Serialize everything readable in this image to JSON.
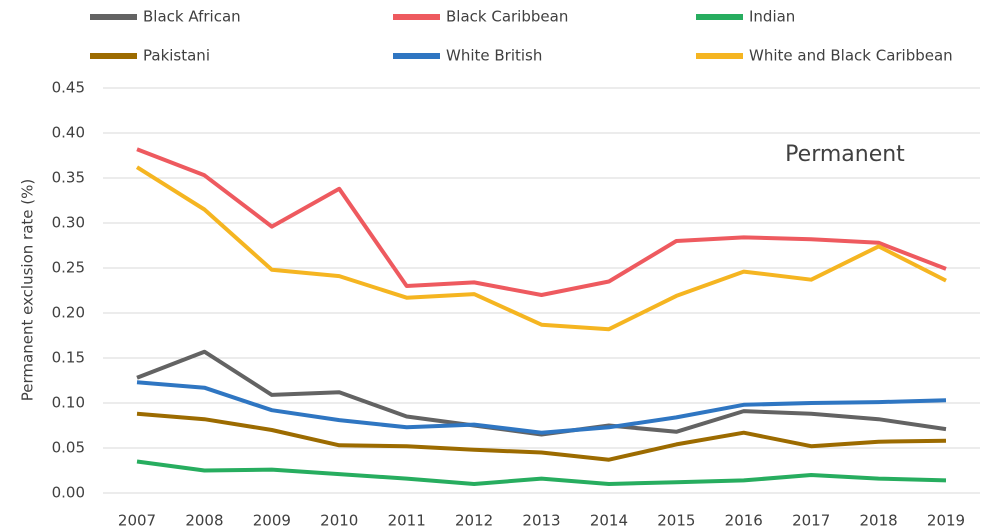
{
  "chart_data": {
    "type": "line",
    "ylabel": "Permanent exclusion rate (%)",
    "annotation": "Permanent",
    "categories": [
      "2007",
      "2008",
      "2009",
      "2010",
      "2011",
      "2012",
      "2013",
      "2014",
      "2015",
      "2016",
      "2017",
      "2018",
      "2019"
    ],
    "series": [
      {
        "name": "Black African",
        "color": "#636363",
        "values": [
          0.128,
          0.157,
          0.109,
          0.112,
          0.085,
          0.075,
          0.065,
          0.075,
          0.068,
          0.091,
          0.088,
          0.082,
          0.071
        ]
      },
      {
        "name": "Black Caribbean",
        "color": "#ee5a5f",
        "values": [
          0.382,
          0.353,
          0.296,
          0.338,
          0.23,
          0.234,
          0.22,
          0.235,
          0.28,
          0.284,
          0.282,
          0.278,
          0.249
        ]
      },
      {
        "name": "Indian",
        "color": "#27ad5f",
        "values": [
          0.035,
          0.025,
          0.026,
          0.021,
          0.016,
          0.01,
          0.016,
          0.01,
          0.012,
          0.014,
          0.02,
          0.016,
          0.014
        ]
      },
      {
        "name": "Pakistani",
        "color": "#9c6b00",
        "values": [
          0.088,
          0.082,
          0.07,
          0.053,
          0.052,
          0.048,
          0.045,
          0.037,
          0.054,
          0.067,
          0.052,
          0.057,
          0.058
        ]
      },
      {
        "name": "White British",
        "color": "#2f76c2",
        "values": [
          0.123,
          0.117,
          0.092,
          0.081,
          0.073,
          0.076,
          0.067,
          0.073,
          0.084,
          0.098,
          0.1,
          0.101,
          0.103
        ]
      },
      {
        "name": "White and Black Caribbean",
        "color": "#f5b521",
        "values": [
          0.362,
          0.315,
          0.248,
          0.241,
          0.217,
          0.221,
          0.187,
          0.182,
          0.219,
          0.246,
          0.237,
          0.274,
          0.236
        ]
      }
    ],
    "ylim": [
      0,
      0.45
    ],
    "yticks": [
      {
        "value": 0,
        "label": "0.00"
      },
      {
        "value": 0.05,
        "label": "0.05"
      },
      {
        "value": 0.1,
        "label": "0.10"
      },
      {
        "value": 0.15,
        "label": "0.15"
      },
      {
        "value": 0.2,
        "label": "0.20"
      },
      {
        "value": 0.25,
        "label": "0.25"
      },
      {
        "value": 0.3,
        "label": "0.30"
      },
      {
        "value": 0.35,
        "label": "0.35"
      },
      {
        "value": 0.4,
        "label": "0.40"
      },
      {
        "value": 0.45,
        "label": "0.45"
      }
    ],
    "grid": true
  }
}
